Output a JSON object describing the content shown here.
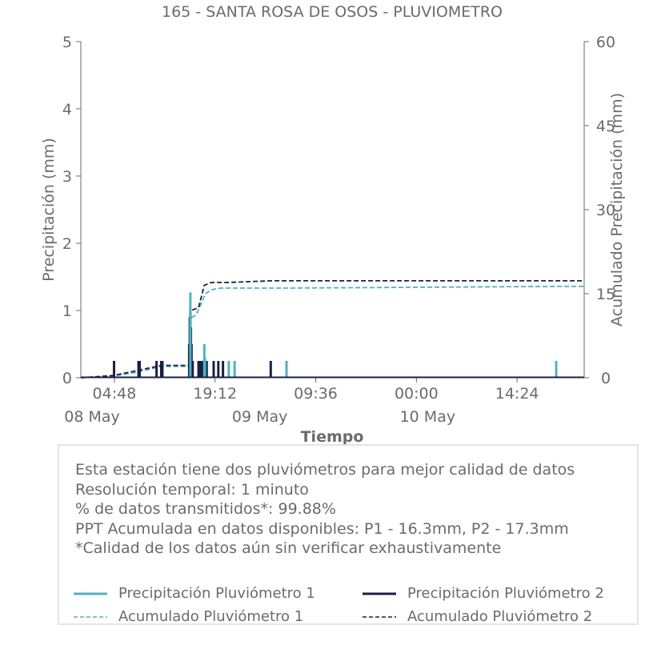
{
  "chart_data": {
    "type": "line",
    "title": "165 - SANTA ROSA DE OSOS - PLUVIOMETRO",
    "xlabel": "Tiempo",
    "ylabel": "Precipitación (mm)",
    "y2label": "Acumulado Precipitación (mm)",
    "ylim": [
      0,
      5
    ],
    "y2lim": [
      0,
      60
    ],
    "yticks": [
      "0",
      "1",
      "2",
      "3",
      "4",
      "5"
    ],
    "y2ticks": [
      "0",
      "15",
      "30",
      "45",
      "60"
    ],
    "xlim": [
      "2023-05-08 00:00",
      "2023-05-11 00:00"
    ],
    "xtick_times": [
      "04:48",
      "19:12",
      "09:36",
      "00:00",
      "14:24"
    ],
    "xtick_dates": [
      "08 May",
      "09 May",
      "10 May"
    ],
    "colors": {
      "p1": "#4eb3bf",
      "p2": "#1c1f45",
      "axis": "#6b6b6b"
    },
    "series": [
      {
        "name": "Precipitación Pluviómetro 1",
        "axis": "left",
        "style": "bars",
        "x": [
          "2023-05-08 15:40",
          "2023-05-08 17:40",
          "2023-05-08 17:45",
          "2023-05-08 21:10",
          "2023-05-08 22:00",
          "2023-05-09 05:25",
          "2023-05-10 20:00"
        ],
        "y": [
          1.27,
          0.5,
          0.3,
          0.25,
          0.25,
          0.25,
          0.25
        ]
      },
      {
        "name": "Precipitación Pluviómetro 2",
        "axis": "left",
        "style": "bars",
        "x": [
          "2023-05-08 04:45",
          "2023-05-08 08:15",
          "2023-05-08 08:25",
          "2023-05-08 10:50",
          "2023-05-08 11:30",
          "2023-05-08 11:40",
          "2023-05-08 15:30",
          "2023-05-08 15:35",
          "2023-05-08 15:40",
          "2023-05-08 15:45",
          "2023-05-08 15:50",
          "2023-05-08 15:55",
          "2023-05-08 16:00",
          "2023-05-08 16:50",
          "2023-05-08 17:00",
          "2023-05-08 17:10",
          "2023-05-08 17:20",
          "2023-05-08 17:30",
          "2023-05-08 17:40",
          "2023-05-08 17:50",
          "2023-05-08 18:00",
          "2023-05-08 19:00",
          "2023-05-08 19:40",
          "2023-05-08 20:20",
          "2023-05-08 02:00",
          "2023-05-09 03:10"
        ],
        "y": [
          0.25,
          0.25,
          0.25,
          0.25,
          0.25,
          0.25,
          0.5,
          0.9,
          1.0,
          0.75,
          0.5,
          0.25,
          0.25,
          0.25,
          0.25,
          0.25,
          0.25,
          0.25,
          0.25,
          0.25,
          0.25,
          0.25,
          0.25,
          0.25,
          0.0,
          0.25
        ]
      },
      {
        "name": "Acumulado Pluviómetro 1",
        "axis": "right",
        "style": "dashed",
        "x": [
          "2023-05-08 00:00",
          "2023-05-08 04:40",
          "2023-05-08 08:10",
          "2023-05-08 11:30",
          "2023-05-08 15:30",
          "2023-05-08 15:45",
          "2023-05-08 16:30",
          "2023-05-08 17:50",
          "2023-05-08 18:40",
          "2023-05-08 20:00",
          "2023-05-09 05:30",
          "2023-05-10 20:00",
          "2023-05-11 00:00"
        ],
        "y": [
          0,
          0.3,
          1.0,
          2.0,
          2.0,
          10.7,
          11.2,
          15.0,
          15.7,
          16.0,
          16.0,
          16.3,
          16.3
        ]
      },
      {
        "name": "Acumulado Pluviómetro 2",
        "axis": "right",
        "style": "dashed",
        "x": [
          "2023-05-08 00:00",
          "2023-05-08 04:40",
          "2023-05-08 08:10",
          "2023-05-08 11:30",
          "2023-05-08 15:30",
          "2023-05-08 15:45",
          "2023-05-08 16:50",
          "2023-05-08 17:40",
          "2023-05-08 18:40",
          "2023-05-08 21:00",
          "2023-05-09 03:10",
          "2023-05-11 00:00"
        ],
        "y": [
          0,
          0.4,
          1.3,
          2.2,
          2.2,
          12.0,
          12.5,
          16.5,
          17.0,
          17.0,
          17.3,
          17.3
        ]
      }
    ]
  },
  "info": {
    "lines": [
      "Esta estación tiene dos pluviómetros para mejor calidad de datos",
      "Resolución temporal: 1 minuto",
      "% de datos transmitidos*: 99.88%",
      "PPT Acumulada en datos disponibles: P1 - 16.3mm, P2 - 17.3mm",
      "*Calidad de los datos aún sin verificar exhaustivamente"
    ]
  },
  "legend": {
    "items": [
      {
        "label": "Precipitación Pluviómetro 1",
        "style": "solid",
        "color": "#4eb3bf"
      },
      {
        "label": "Precipitación Pluviómetro 2",
        "style": "solid",
        "color": "#1c1f45"
      },
      {
        "label": "Acumulado Pluviómetro 1",
        "style": "dashed",
        "color": "#4eb3bf"
      },
      {
        "label": "Acumulado Pluviómetro 2",
        "style": "dashed",
        "color": "#1c1f45"
      }
    ]
  }
}
